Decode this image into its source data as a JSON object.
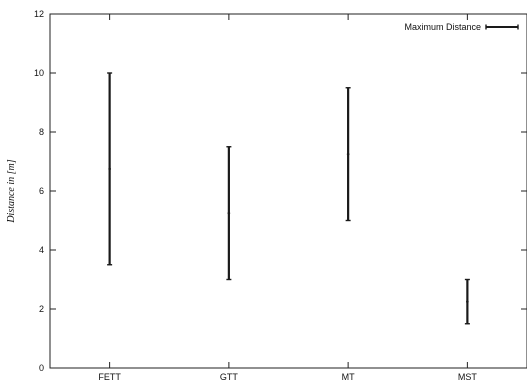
{
  "chart_data": {
    "type": "errorbar",
    "title": "",
    "xlabel": "",
    "ylabel": "Distance in [m]",
    "categories": [
      "FETT",
      "GTT",
      "MT",
      "MST"
    ],
    "ylim": [
      0,
      12
    ],
    "yticks": [
      0,
      2,
      4,
      6,
      8,
      10,
      12
    ],
    "grid": false,
    "legend_position": "top-right",
    "series": [
      {
        "name": "Maximum Distance",
        "color": "#1a1a1a",
        "ranges": [
          {
            "low": 3.5,
            "high": 10.0
          },
          {
            "low": 3.0,
            "high": 7.5
          },
          {
            "low": 5.0,
            "high": 9.5
          },
          {
            "low": 1.5,
            "high": 3.0
          }
        ]
      }
    ]
  }
}
